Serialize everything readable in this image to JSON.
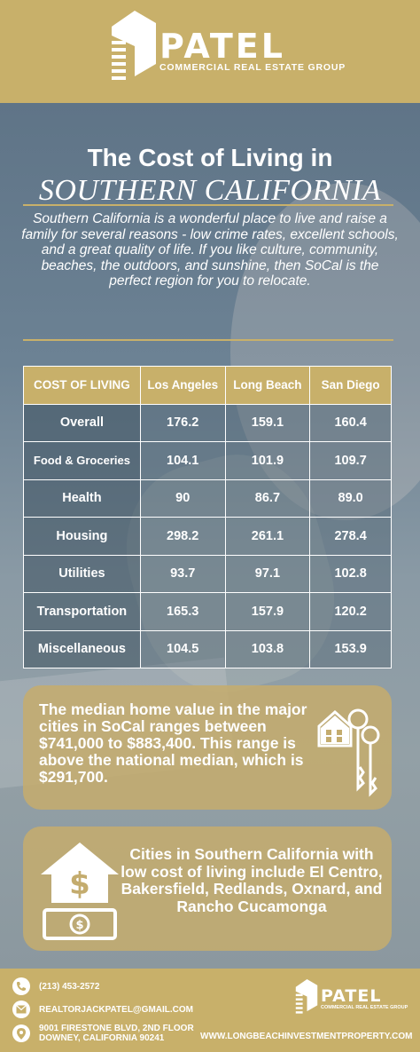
{
  "header": {
    "brand": "PATEL",
    "subtitle": "COMMERCIAL REAL ESTATE GROUP"
  },
  "hero": {
    "title_line1": "The Cost of Living in",
    "title_line2": "SOUTHERN CALIFORNIA",
    "intro": "Southern California is a wonderful place to live and raise a family for several reasons - low crime rates, excellent schools, and a great quality of life. If you like culture, community, beaches, the outdoors, and sunshine, then SoCal is the perfect region for you to relocate."
  },
  "table": {
    "headers": [
      "COST OF LIVING",
      "Los Angeles",
      "Long Beach",
      "San Diego"
    ],
    "rows": [
      {
        "label": "Overall",
        "la": "176.2",
        "lb": "159.1",
        "sd": "160.4"
      },
      {
        "label": "Food & Groceries",
        "la": "104.1",
        "lb": "101.9",
        "sd": "109.7"
      },
      {
        "label": "Health",
        "la": "90",
        "lb": "86.7",
        "sd": "89.0"
      },
      {
        "label": "Housing",
        "la": "298.2",
        "lb": "261.1",
        "sd": "278.4"
      },
      {
        "label": "Utilities",
        "la": "93.7",
        "lb": "97.1",
        "sd": "102.8"
      },
      {
        "label": "Transportation",
        "la": "165.3",
        "lb": "157.9",
        "sd": "120.2"
      },
      {
        "label": "Miscellaneous",
        "la": "104.5",
        "lb": "103.8",
        "sd": "153.9"
      }
    ]
  },
  "median_box": {
    "text": "The median home value in the major cities in SoCal ranges between $741,000 to $883,400. This range is above the national median, which is $291,700.",
    "icon": "house-keys-icon"
  },
  "cities_box": {
    "text": "Cities in Southern California with low cost of living include El Centro, Bakersfield, Redlands, Oxnard, and Rancho Cucamonga",
    "icon": "house-dollar-icon"
  },
  "footer": {
    "phone": "(213) 453-2572",
    "email": "REALTORJACKPATEL@GMAIL.COM",
    "address_line1": "9001 FIRESTONE BLVD, 2ND FLOOR",
    "address_line2": "DOWNEY, CALIFORNIA 90241",
    "brand": "PATEL",
    "subtitle": "COMMERCIAL REAL ESTATE GROUP",
    "website": "WWW.LONGBEACHINVESTMENTPROPERTY.COM"
  },
  "colors": {
    "gold": "#c8b06a",
    "white": "#ffffff"
  }
}
